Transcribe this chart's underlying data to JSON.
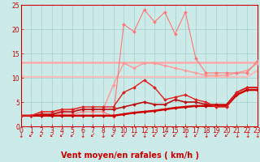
{
  "background_color": "#cceae7",
  "grid_color": "#aad4d0",
  "xlabel": "Vent moyen/en rafales ( km/h )",
  "xlabel_color": "#cc0000",
  "xlabel_fontsize": 7,
  "ylim": [
    0,
    25
  ],
  "xlim": [
    0,
    23
  ],
  "yticks": [
    0,
    5,
    10,
    15,
    20,
    25
  ],
  "xticks": [
    0,
    1,
    2,
    3,
    4,
    5,
    6,
    7,
    8,
    9,
    10,
    11,
    12,
    13,
    14,
    15,
    16,
    17,
    18,
    19,
    20,
    21,
    22,
    23
  ],
  "series": [
    {
      "name": "flat_pink_13",
      "x": [
        0,
        1,
        2,
        3,
        4,
        5,
        6,
        7,
        8,
        9,
        10,
        11,
        12,
        13,
        14,
        15,
        16,
        17,
        18,
        19,
        20,
        21,
        22,
        23
      ],
      "y": [
        13.2,
        13.2,
        13.2,
        13.2,
        13.2,
        13.2,
        13.2,
        13.2,
        13.2,
        13.2,
        13.2,
        13.2,
        13.2,
        13.2,
        13.2,
        13.2,
        13.2,
        13.2,
        13.2,
        13.2,
        13.2,
        13.2,
        13.2,
        13.2
      ],
      "color": "#ffaaaa",
      "lw": 1.8,
      "marker": null,
      "zorder": 2
    },
    {
      "name": "flat_pink_10",
      "x": [
        0,
        1,
        2,
        3,
        4,
        5,
        6,
        7,
        8,
        9,
        10,
        11,
        12,
        13,
        14,
        15,
        16,
        17,
        18,
        19,
        20,
        21,
        22,
        23
      ],
      "y": [
        10.2,
        10.2,
        10.2,
        10.2,
        10.2,
        10.2,
        10.2,
        10.2,
        10.2,
        10.2,
        10.2,
        10.2,
        10.2,
        10.2,
        10.2,
        10.2,
        10.2,
        10.2,
        10.2,
        10.2,
        10.2,
        10.2,
        10.2,
        11.5
      ],
      "color": "#ffbbbb",
      "lw": 1.5,
      "marker": null,
      "zorder": 2
    },
    {
      "name": "pink_wavy_upper",
      "x": [
        0,
        1,
        2,
        3,
        4,
        5,
        6,
        7,
        8,
        9,
        10,
        11,
        12,
        13,
        14,
        15,
        16,
        17,
        18,
        19,
        20,
        21,
        22,
        23
      ],
      "y": [
        2.2,
        2.2,
        3.0,
        3.0,
        3.2,
        3.5,
        3.5,
        3.5,
        3.5,
        8.5,
        13.0,
        12.0,
        13.0,
        13.0,
        12.5,
        12.0,
        11.5,
        11.0,
        10.5,
        10.5,
        10.5,
        11.0,
        11.5,
        13.0
      ],
      "color": "#ff9999",
      "lw": 1.0,
      "marker": "D",
      "markersize": 2.0,
      "zorder": 3
    },
    {
      "name": "pink_spiky",
      "x": [
        0,
        1,
        2,
        3,
        4,
        5,
        6,
        7,
        8,
        9,
        10,
        11,
        12,
        13,
        14,
        15,
        16,
        17,
        18,
        19,
        20,
        21,
        22,
        23
      ],
      "y": [
        2.2,
        2.2,
        2.2,
        2.5,
        2.5,
        2.5,
        3.0,
        3.0,
        3.0,
        2.0,
        21.0,
        19.5,
        24.0,
        21.5,
        23.5,
        19.0,
        23.5,
        14.0,
        11.0,
        11.0,
        11.0,
        11.0,
        11.0,
        13.5
      ],
      "color": "#ff7777",
      "lw": 0.8,
      "marker": "D",
      "markersize": 2.0,
      "zorder": 4
    },
    {
      "name": "dark_red_linear",
      "x": [
        0,
        1,
        2,
        3,
        4,
        5,
        6,
        7,
        8,
        9,
        10,
        11,
        12,
        13,
        14,
        15,
        16,
        17,
        18,
        19,
        20,
        21,
        22,
        23
      ],
      "y": [
        2.2,
        2.2,
        2.2,
        2.2,
        2.2,
        2.2,
        2.2,
        2.2,
        2.2,
        2.2,
        2.5,
        2.8,
        3.0,
        3.2,
        3.5,
        3.8,
        4.0,
        4.2,
        4.2,
        4.2,
        4.2,
        6.5,
        7.5,
        7.5
      ],
      "color": "#cc0000",
      "lw": 1.8,
      "marker": "D",
      "markersize": 2.0,
      "zorder": 5
    },
    {
      "name": "dark_red_hump",
      "x": [
        0,
        1,
        2,
        3,
        4,
        5,
        6,
        7,
        8,
        9,
        10,
        11,
        12,
        13,
        14,
        15,
        16,
        17,
        18,
        19,
        20,
        21,
        22,
        23
      ],
      "y": [
        2.2,
        2.2,
        3.0,
        3.0,
        3.5,
        3.5,
        4.0,
        4.0,
        4.0,
        4.0,
        7.0,
        8.0,
        9.5,
        8.0,
        5.5,
        6.0,
        6.5,
        5.5,
        5.0,
        4.0,
        4.0,
        7.0,
        8.0,
        8.0
      ],
      "color": "#dd2222",
      "lw": 1.0,
      "marker": "D",
      "markersize": 2.0,
      "zorder": 5
    },
    {
      "name": "dark_red_rising",
      "x": [
        0,
        1,
        2,
        3,
        4,
        5,
        6,
        7,
        8,
        9,
        10,
        11,
        12,
        13,
        14,
        15,
        16,
        17,
        18,
        19,
        20,
        21,
        22,
        23
      ],
      "y": [
        2.2,
        2.2,
        2.5,
        2.5,
        3.0,
        3.0,
        3.5,
        3.5,
        3.5,
        3.5,
        4.0,
        4.5,
        5.0,
        4.5,
        4.5,
        5.5,
        5.0,
        5.0,
        4.5,
        4.5,
        4.5,
        7.0,
        8.0,
        8.0
      ],
      "color": "#bb1111",
      "lw": 1.2,
      "marker": "D",
      "markersize": 2.0,
      "zorder": 4
    }
  ],
  "tick_label_color": "#cc0000",
  "tick_fontsize": 5.5,
  "arrow_color": "#cc0000"
}
